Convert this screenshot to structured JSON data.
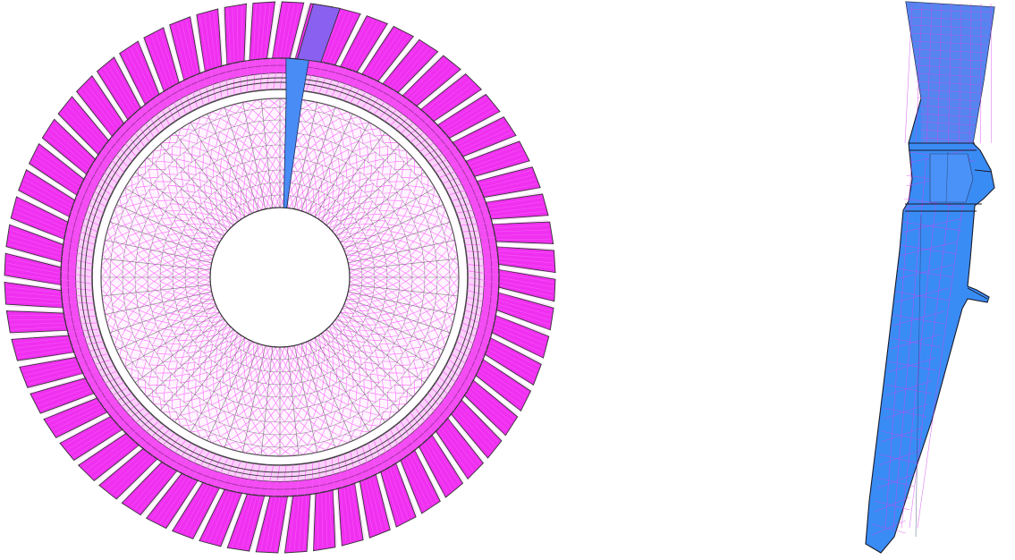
{
  "figure": {
    "disk_mesh": {
      "blade_count": 60,
      "outer_blade_color": "#f030f0",
      "fine_mesh_color": "#ff40ff",
      "coarse_edge_color": "#333333",
      "sector_color": "#4a8cf5",
      "sector_overlap_color": "#8a60f0"
    },
    "sector_mesh": {
      "fill_color": "#3a8cf5",
      "mesh_line_color": "#d040f0",
      "edge_color": "#1a1a2a"
    }
  }
}
